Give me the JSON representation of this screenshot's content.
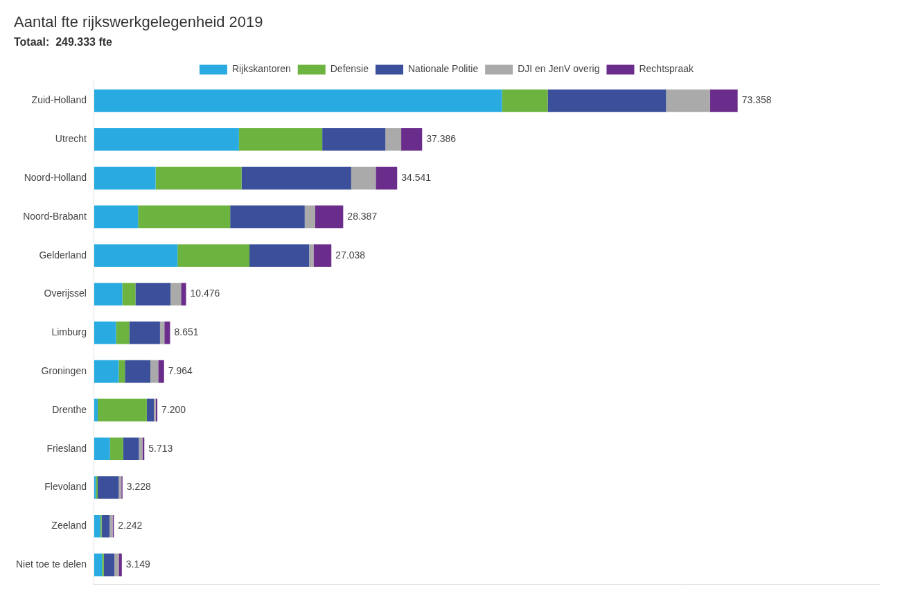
{
  "chart_data": {
    "type": "bar",
    "orientation": "horizontal",
    "stacked": true,
    "title": "Aantal fte rijkswerkgelegenheid 2019",
    "subtitle": "Totaal:  249.333 fte",
    "categories": [
      "Zuid-Holland",
      "Utrecht",
      "Noord-Holland",
      "Noord-Brabant",
      "Gelderland",
      "Overijssel",
      "Limburg",
      "Groningen",
      "Drenthe",
      "Friesland",
      "Flevoland",
      "Zeeland",
      "Niet toe te delen"
    ],
    "series": [
      {
        "name": "Rijkskantoren",
        "color": "#29ABE2",
        "values": [
          46500,
          16500,
          7000,
          5000,
          9500,
          3200,
          2500,
          2800,
          400,
          1800,
          200,
          700,
          900
        ]
      },
      {
        "name": "Defensie",
        "color": "#6DB33F",
        "values": [
          5200,
          9500,
          9800,
          10500,
          8200,
          1500,
          1500,
          700,
          5600,
          1500,
          200,
          150,
          200
        ]
      },
      {
        "name": "Nationale Politie",
        "color": "#3B4F9A",
        "values": [
          13500,
          7200,
          12500,
          8500,
          6800,
          4000,
          3500,
          2900,
          800,
          1800,
          2400,
          900,
          1200
        ]
      },
      {
        "name": "DJI en JenV overig",
        "color": "#AAAAAA",
        "values": [
          5000,
          1800,
          2800,
          1200,
          500,
          1200,
          500,
          900,
          200,
          400,
          300,
          350,
          500
        ]
      },
      {
        "name": "Rechtspraak",
        "color": "#6B2D8B",
        "values": [
          3158,
          2386,
          2441,
          3187,
          2038,
          576,
          651,
          664,
          200,
          213,
          128,
          142,
          349
        ]
      }
    ],
    "totals": [
      73358,
      37386,
      34541,
      28387,
      27038,
      10476,
      8651,
      7964,
      7200,
      5713,
      3228,
      2242,
      3149
    ],
    "total_labels": [
      "73.358",
      "37.386",
      "34.541",
      "28.387",
      "27.038",
      "10.476",
      "8.651",
      "7.964",
      "7.200",
      "5.713",
      "3.228",
      "2.242",
      "3.149"
    ],
    "xlim": [
      0,
      89496.76
    ],
    "grid": false,
    "legend": "top",
    "tick_labels": "y"
  }
}
